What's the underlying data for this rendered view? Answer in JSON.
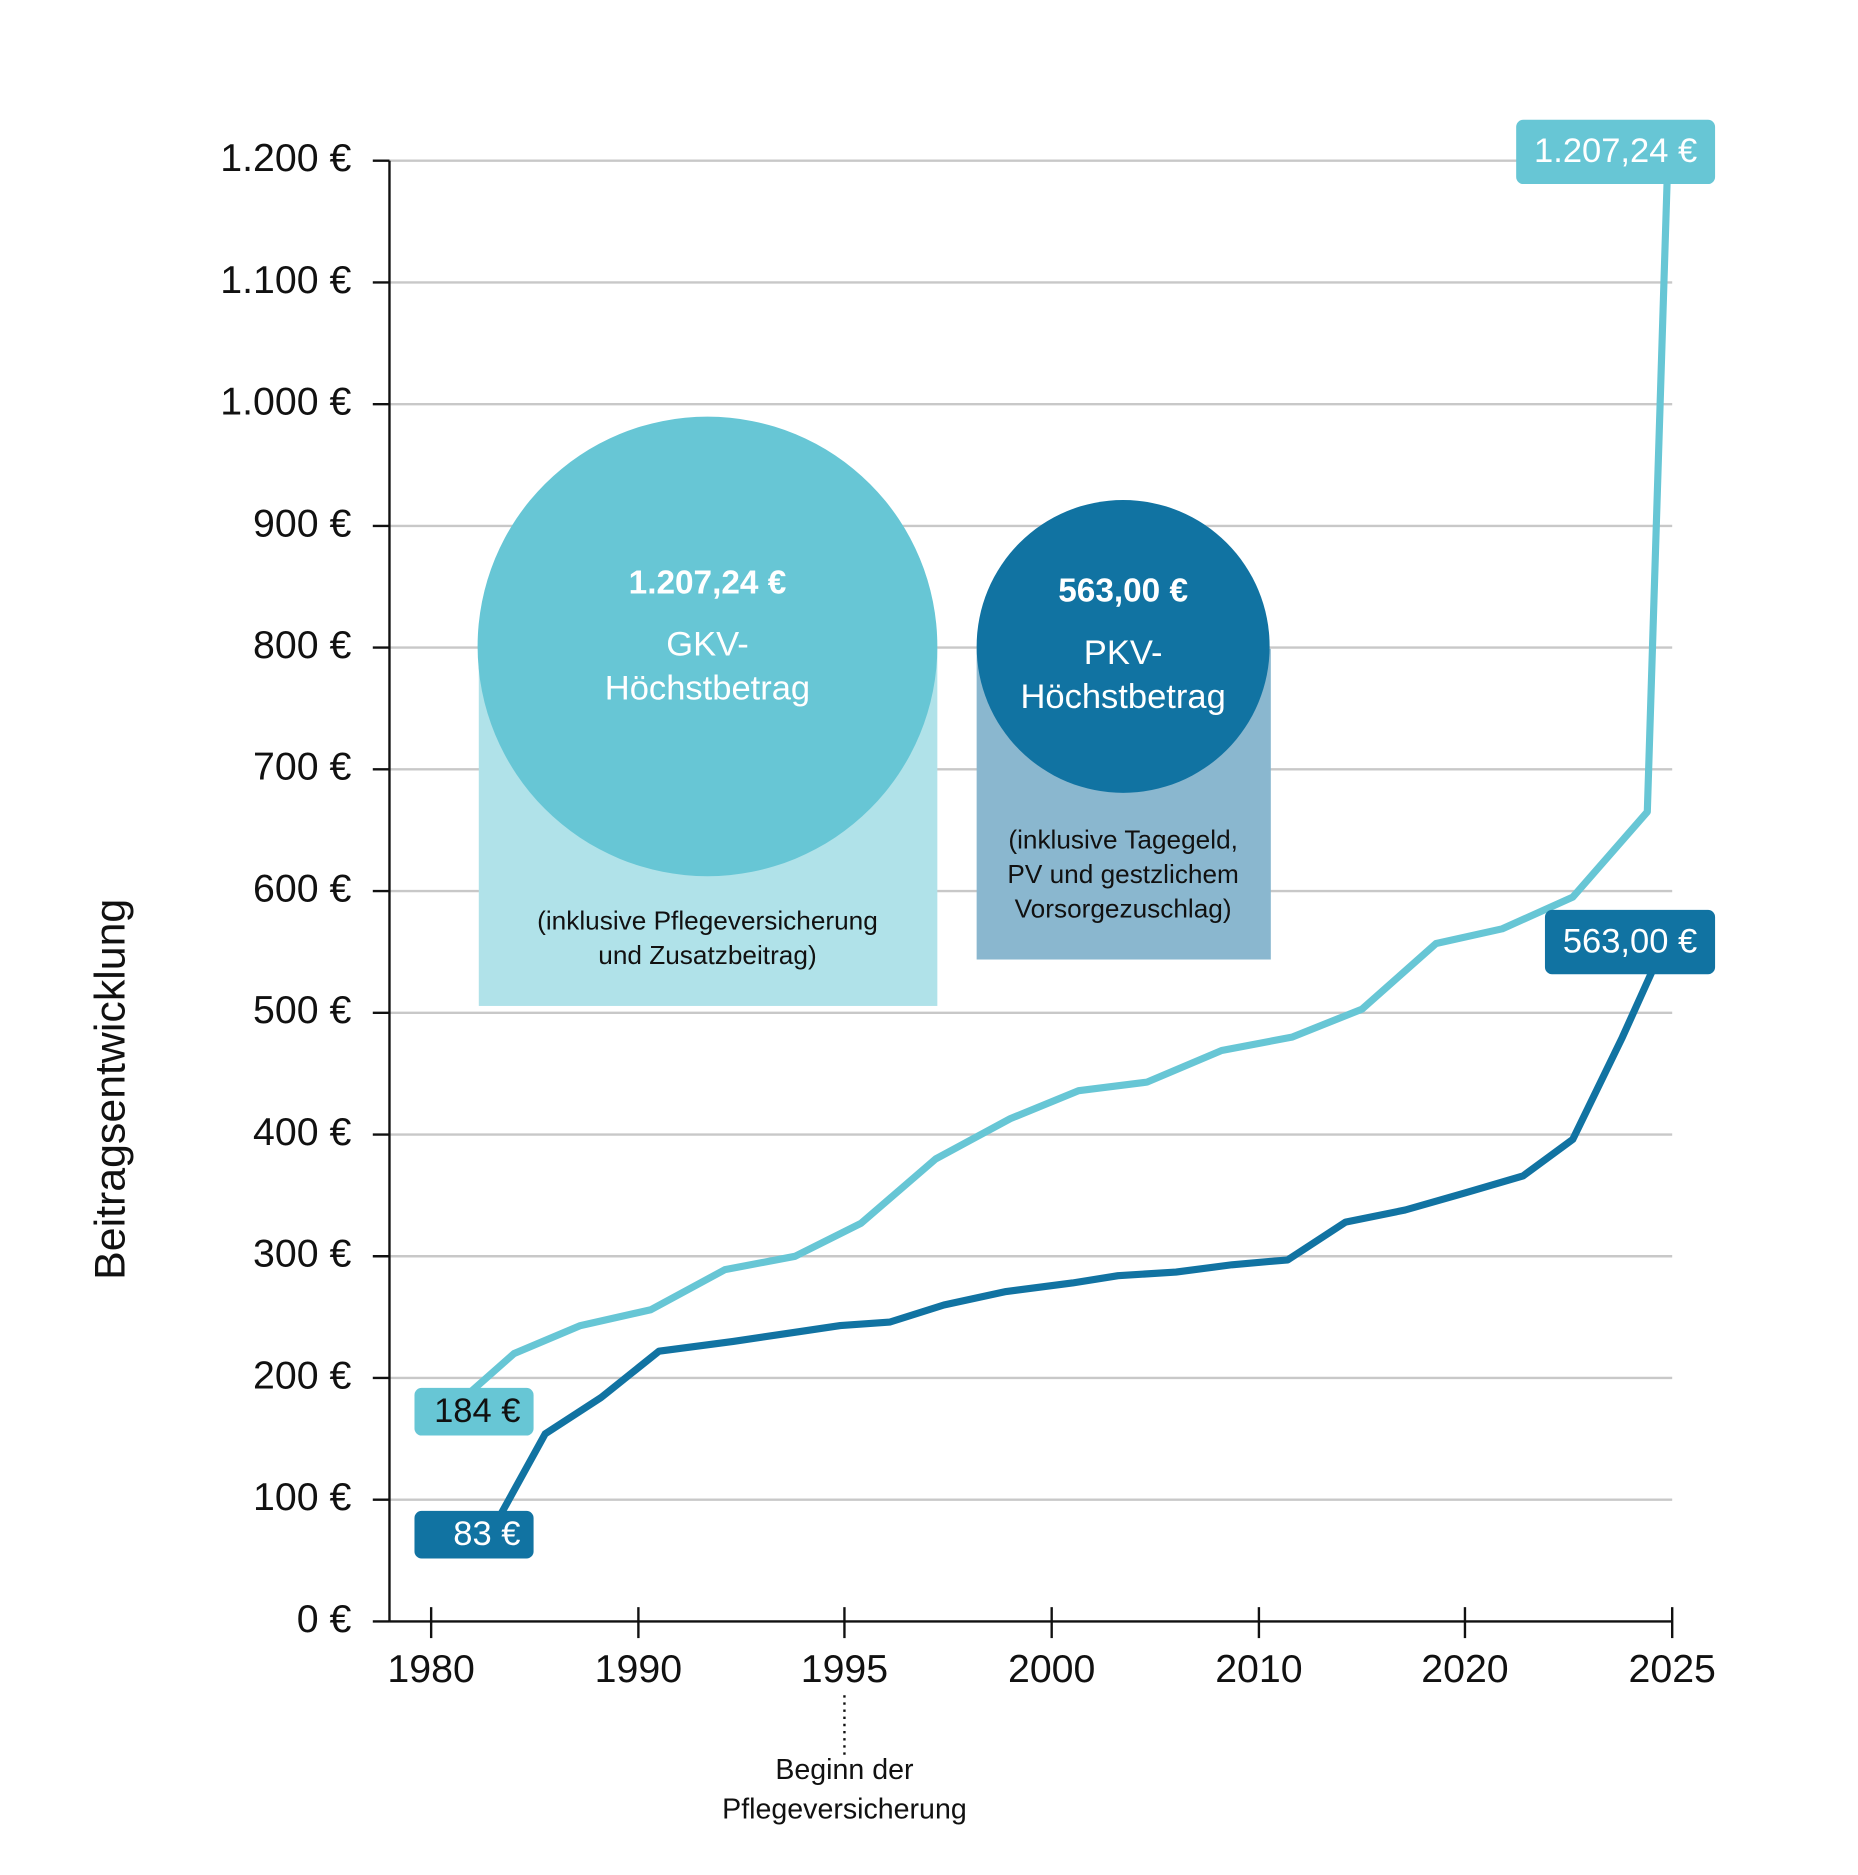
{
  "chart_data": {
    "type": "line",
    "y_label": "Beitragsentwicklung",
    "xlim": [
      1978,
      2025
    ],
    "xticks": [
      1980,
      1990,
      1995,
      2000,
      2010,
      2020,
      2025
    ],
    "ylim": [
      0,
      1200
    ],
    "yticks": [
      {
        "value": 0,
        "label": "0 €"
      },
      {
        "value": 100,
        "label": "100 €"
      },
      {
        "value": 200,
        "label": "200 €"
      },
      {
        "value": 300,
        "label": "300 €"
      },
      {
        "value": 400,
        "label": "400 €"
      },
      {
        "value": 500,
        "label": "500 €"
      },
      {
        "value": 600,
        "label": "600 €"
      },
      {
        "value": 700,
        "label": "700 €"
      },
      {
        "value": 800,
        "label": "800 €"
      },
      {
        "value": 900,
        "label": "900 €"
      },
      {
        "value": 1000,
        "label": "1.000 €"
      },
      {
        "value": 1100,
        "label": "1.100 €"
      },
      {
        "value": 1200,
        "label": "1.200 €"
      }
    ],
    "grid": true,
    "series": [
      {
        "color": "#67c6d5",
        "x": [
          1981.6,
          1984.0,
          1987.2,
          1990.3,
          1992.1,
          1993.8,
          1995.4,
          1997.2,
          1999.0,
          2001.3,
          2004.6,
          2008.2,
          2011.6,
          2015.0,
          2018.6,
          2020.9,
          2022.6,
          2024.4,
          2024.9
        ],
        "values": [
          184,
          220,
          243,
          256,
          289,
          300,
          327,
          380,
          413,
          436,
          443,
          469,
          480,
          503,
          557,
          569,
          595,
          665,
          1207.24
        ],
        "value_labels": [
          "184 €",
          null,
          null,
          null,
          null,
          null,
          null,
          null,
          null,
          null,
          null,
          null,
          null,
          null,
          null,
          null,
          null,
          null,
          "1.207,24 €"
        ]
      },
      {
        "color": "#1173a2",
        "x": [
          1983.2,
          1985.5,
          1988.2,
          1990.5,
          1992.3,
          1993.9,
          1994.9,
          1996.1,
          1997.4,
          1998.9,
          2001.0,
          2003.2,
          2006.0,
          2008.7,
          2011.4,
          2014.2,
          2017.1,
          2020.0,
          2021.4,
          2022.6,
          2023.8,
          2024.9
        ],
        "values": [
          83,
          154,
          184,
          222,
          230,
          238,
          243,
          246,
          260,
          271,
          278,
          284,
          287,
          293,
          297,
          328,
          338,
          352,
          366,
          396,
          480,
          563
        ],
        "value_labels": [
          "83 €",
          null,
          null,
          null,
          null,
          null,
          null,
          null,
          null,
          null,
          null,
          null,
          null,
          null,
          null,
          null,
          null,
          null,
          null,
          null,
          null,
          "563,00 €"
        ]
      }
    ],
    "bubbles": [
      {
        "amount": "1.207,24 €",
        "title": [
          "GKV-",
          "Höchstbetrag"
        ],
        "note": [
          "(inklusive Pflegeversicherung",
          "und Zusatzbeitrag)"
        ]
      },
      {
        "amount": "563,00 €",
        "title": [
          "PKV-",
          "Höchstbetrag"
        ],
        "note": [
          "(inklusive Tagegeld,",
          "PV und gestzlichem",
          "Vorsorgezuschlag)"
        ]
      }
    ],
    "x_annotation": {
      "x": 1995,
      "lines": [
        "Beginn der",
        "Pflegeversicherung"
      ]
    }
  }
}
